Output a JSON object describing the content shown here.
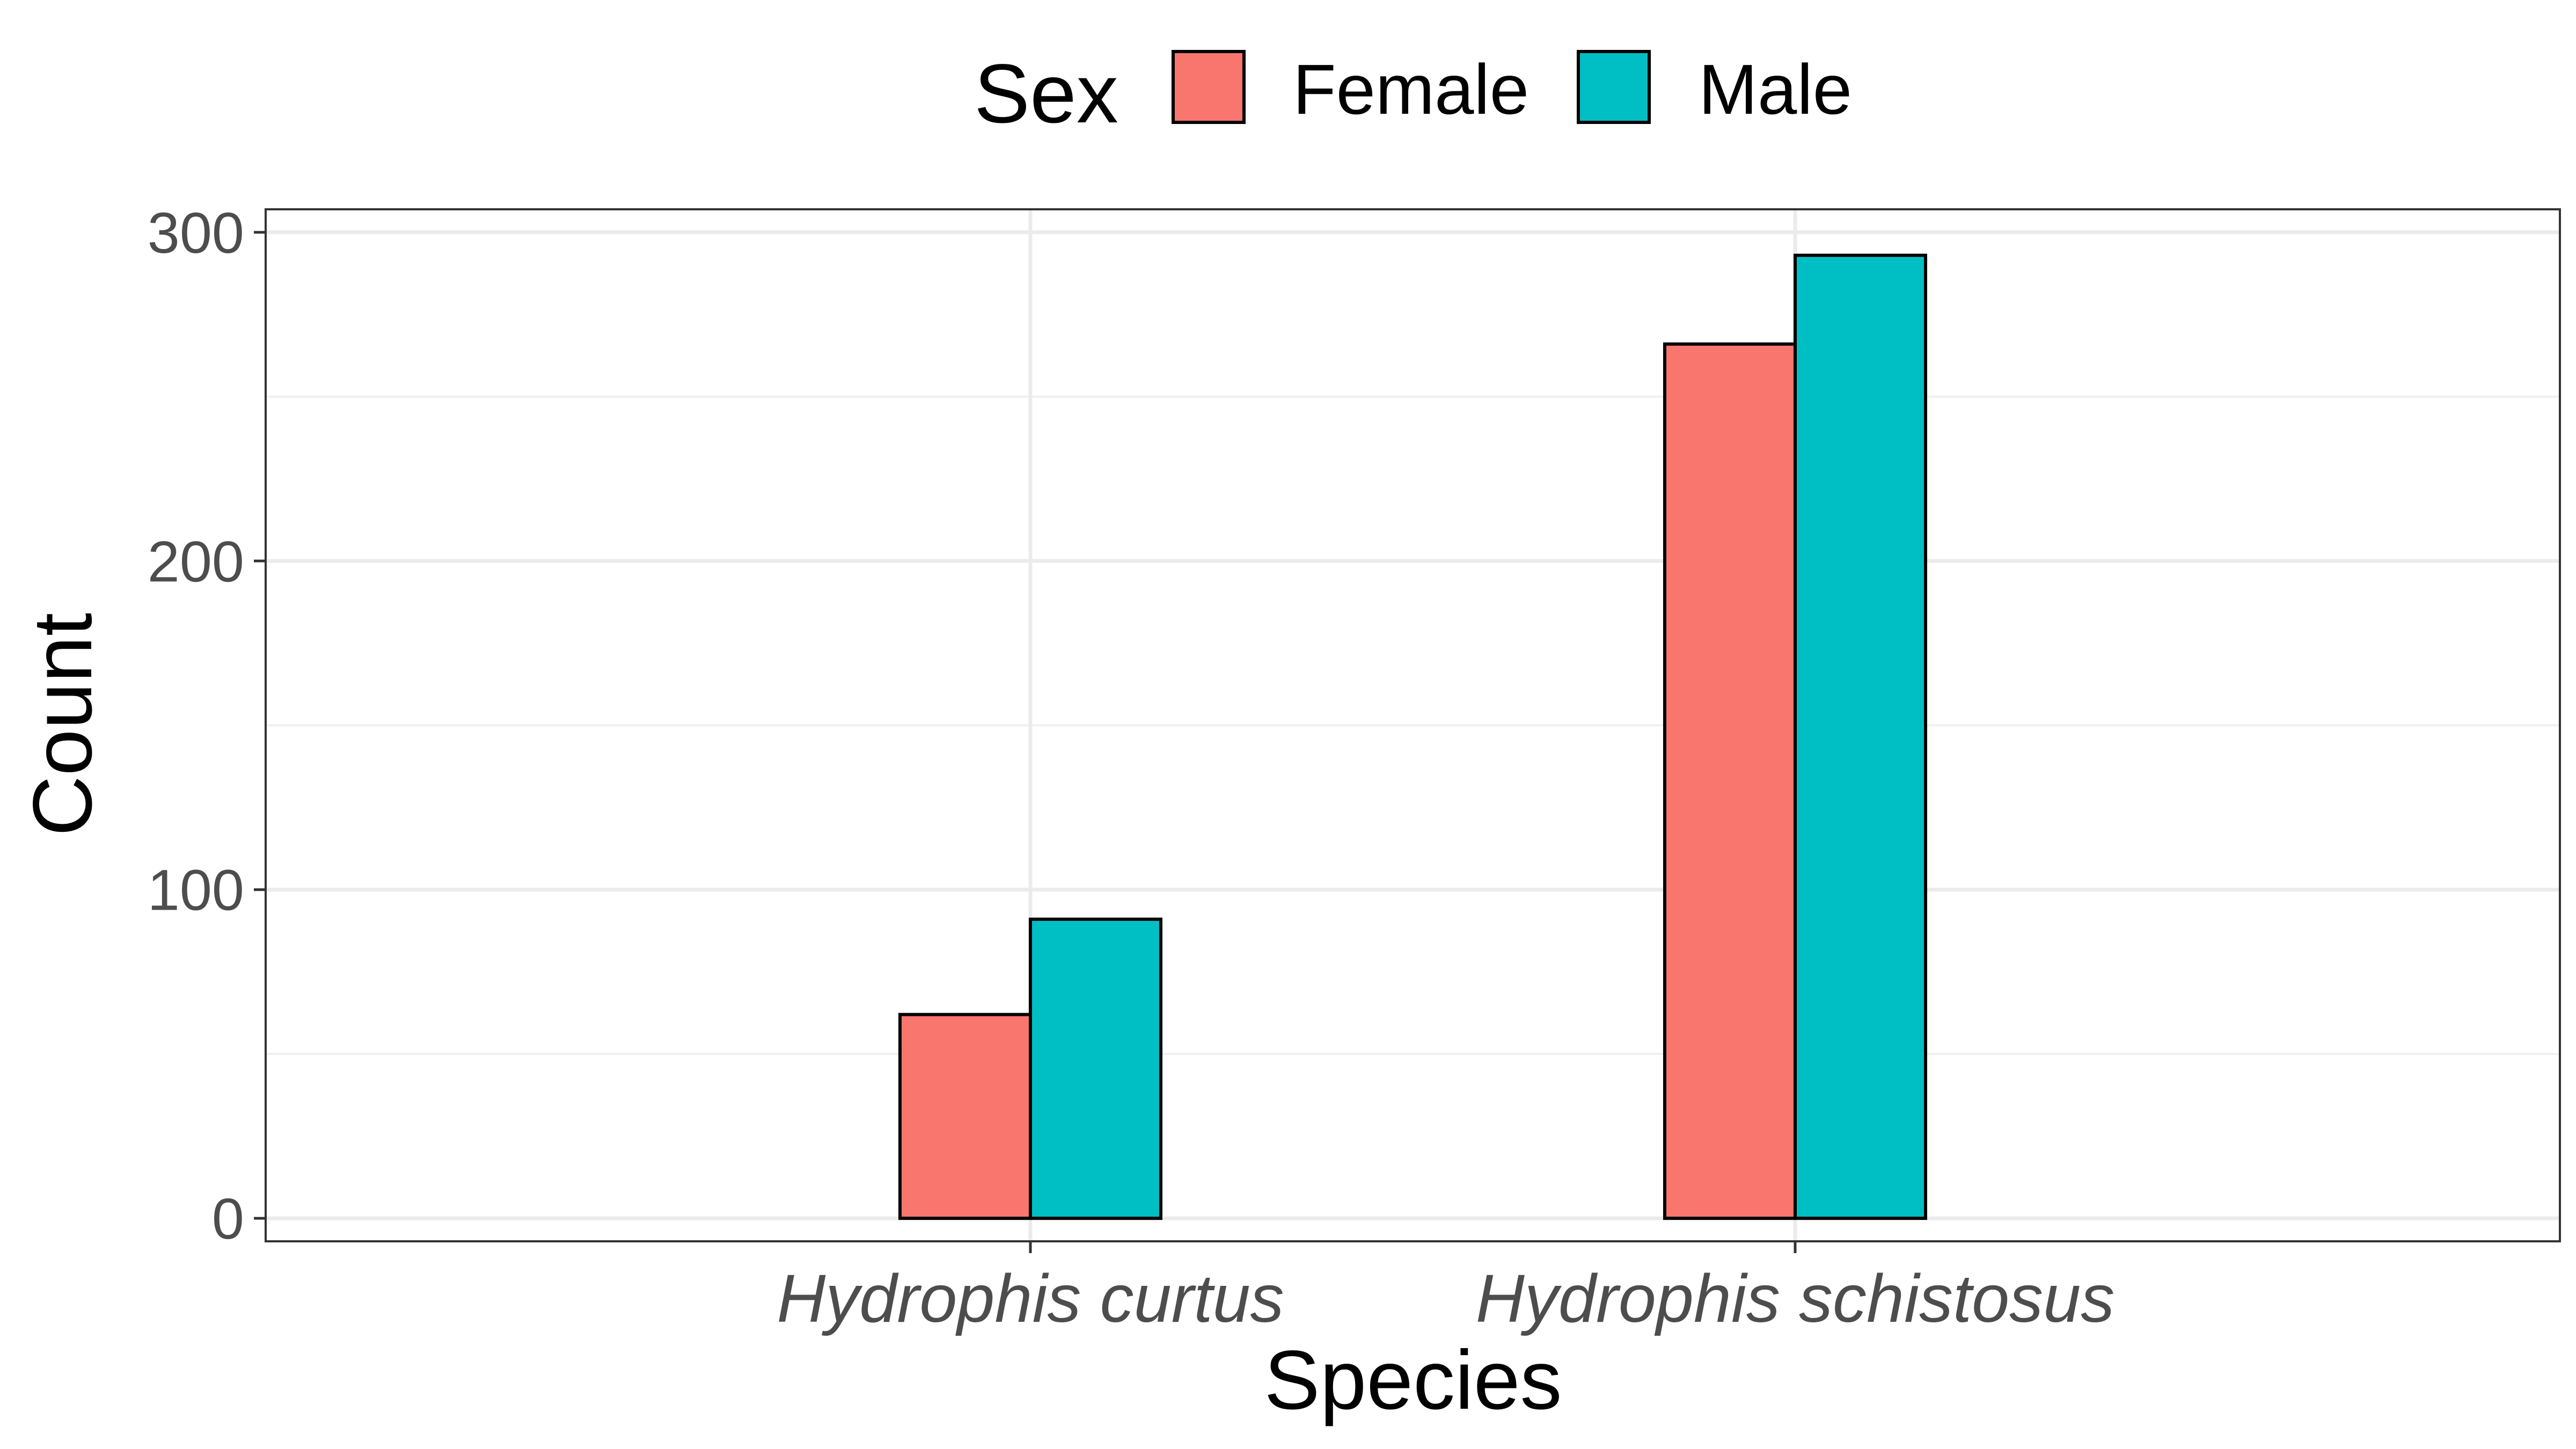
{
  "chart_data": {
    "type": "bar",
    "categories": [
      "Hydrophis curtus",
      "Hydrophis schistosus"
    ],
    "series": [
      {
        "name": "Female",
        "values": [
          62,
          266
        ],
        "color": "#f8766d"
      },
      {
        "name": "Male",
        "values": [
          91,
          293
        ],
        "color": "#00bfc4"
      }
    ],
    "xlabel": "Species",
    "ylabel": "Count",
    "ylim": [
      -7,
      307
    ],
    "yticks": [
      0,
      100,
      200,
      300
    ],
    "grid": true,
    "legend": {
      "title": "Sex",
      "position": "top"
    }
  }
}
